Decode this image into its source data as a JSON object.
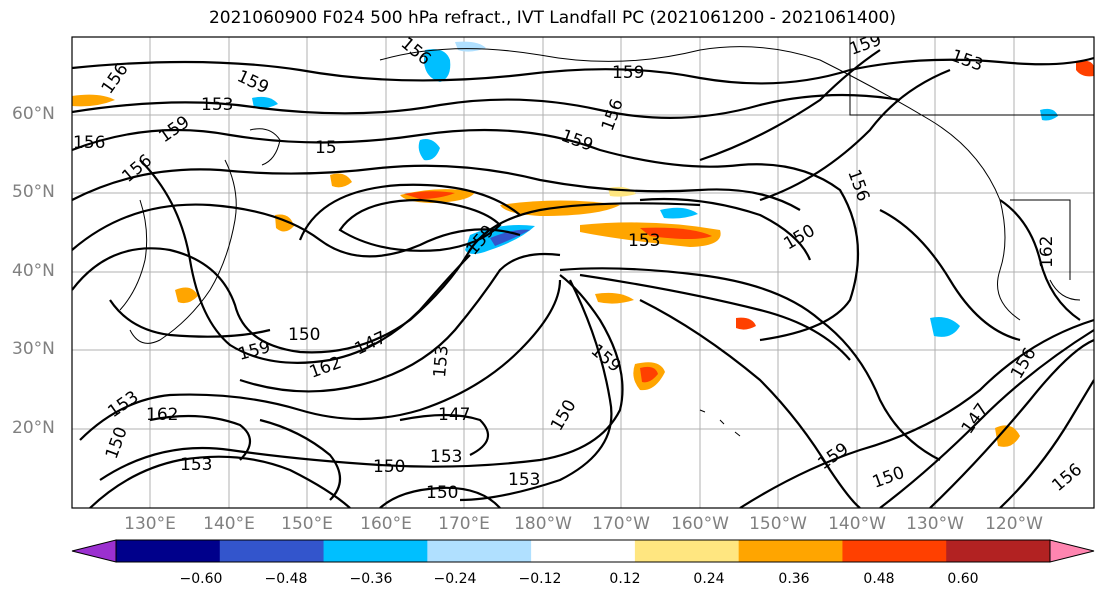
{
  "title": "2021060900 F024 500 hPa refract., IVT Landfall PC (2021061200 - 2021061400)",
  "lat_labels": [
    "60°N",
    "50°N",
    "40°N",
    "30°N",
    "20°N"
  ],
  "lon_labels": [
    "130°E",
    "140°E",
    "150°E",
    "160°E",
    "170°E",
    "180°W",
    "170°W",
    "160°W",
    "150°W",
    "140°W",
    "130°W",
    "120°W"
  ],
  "contour_labels": [
    "156",
    "159",
    "153",
    "156",
    "159",
    "156",
    "15",
    "156",
    "159",
    "159",
    "156",
    "159",
    "153",
    "153",
    "150",
    "156",
    "159",
    "162",
    "150",
    "159",
    "162",
    "147",
    "159",
    "153",
    "147",
    "150",
    "153",
    "162",
    "150",
    "153",
    "153",
    "150",
    "150",
    "159",
    "150",
    "153",
    "147",
    "156",
    "156"
  ],
  "colorbar": {
    "ticks": [
      "−0.60",
      "−0.48",
      "−0.36",
      "−0.24",
      "−0.12",
      "0.12",
      "0.24",
      "0.36",
      "0.48",
      "0.60"
    ],
    "colors": [
      "#9b30d0",
      "#00008b",
      "#3355cc",
      "#00bfff",
      "#b0e0ff",
      "#ffffff",
      "#ffe680",
      "#ffa500",
      "#ff4000",
      "#b22222",
      "#ff85b0"
    ]
  },
  "fill_colors": {
    "orange": "#ffa500",
    "yellow": "#ffe680",
    "red": "#ff4000",
    "lightblue": "#b0e0ff",
    "blue": "#00bfff",
    "darkblue": "#3355cc"
  }
}
